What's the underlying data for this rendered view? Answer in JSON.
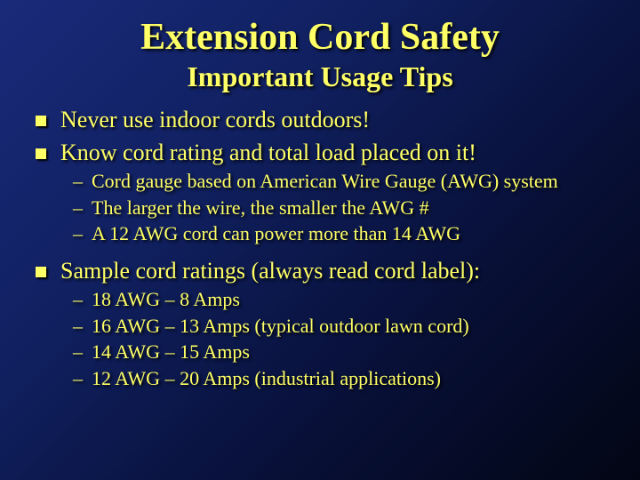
{
  "background": {
    "gradient_stops": [
      "#1a2a7a",
      "#102060",
      "#081038",
      "#020614"
    ],
    "gradient_direction": "135deg"
  },
  "text_color": "#ffff66",
  "title": "Extension Cord Safety",
  "subtitle": "Important Usage Tips",
  "items": [
    {
      "level": 1,
      "text": "Never use indoor cords outdoors!"
    },
    {
      "level": 1,
      "text": "Know cord rating and total load placed on it!"
    },
    {
      "level": 2,
      "text": "Cord gauge based on American Wire Gauge (AWG) system"
    },
    {
      "level": 2,
      "text": "The larger the wire, the smaller the AWG #"
    },
    {
      "level": 2,
      "text": "A 12 AWG cord can power more than 14 AWG"
    },
    {
      "level": 1,
      "text": "Sample cord ratings (always read cord label):"
    },
    {
      "level": 2,
      "text": "18 AWG – 8 Amps"
    },
    {
      "level": 2,
      "text": "16 AWG – 13 Amps (typical outdoor lawn cord)"
    },
    {
      "level": 2,
      "text": "14 AWG – 15 Amps"
    },
    {
      "level": 2,
      "text": "12 AWG – 20 Amps (industrial applications)"
    }
  ],
  "bullet": {
    "level1_shape": "square",
    "level1_color": "#ffff66",
    "level2_marker": "–"
  },
  "typography": {
    "font_family": "Times New Roman",
    "title_size_pt": 42,
    "subtitle_size_pt": 32,
    "level1_size_pt": 26,
    "level2_size_pt": 22
  }
}
